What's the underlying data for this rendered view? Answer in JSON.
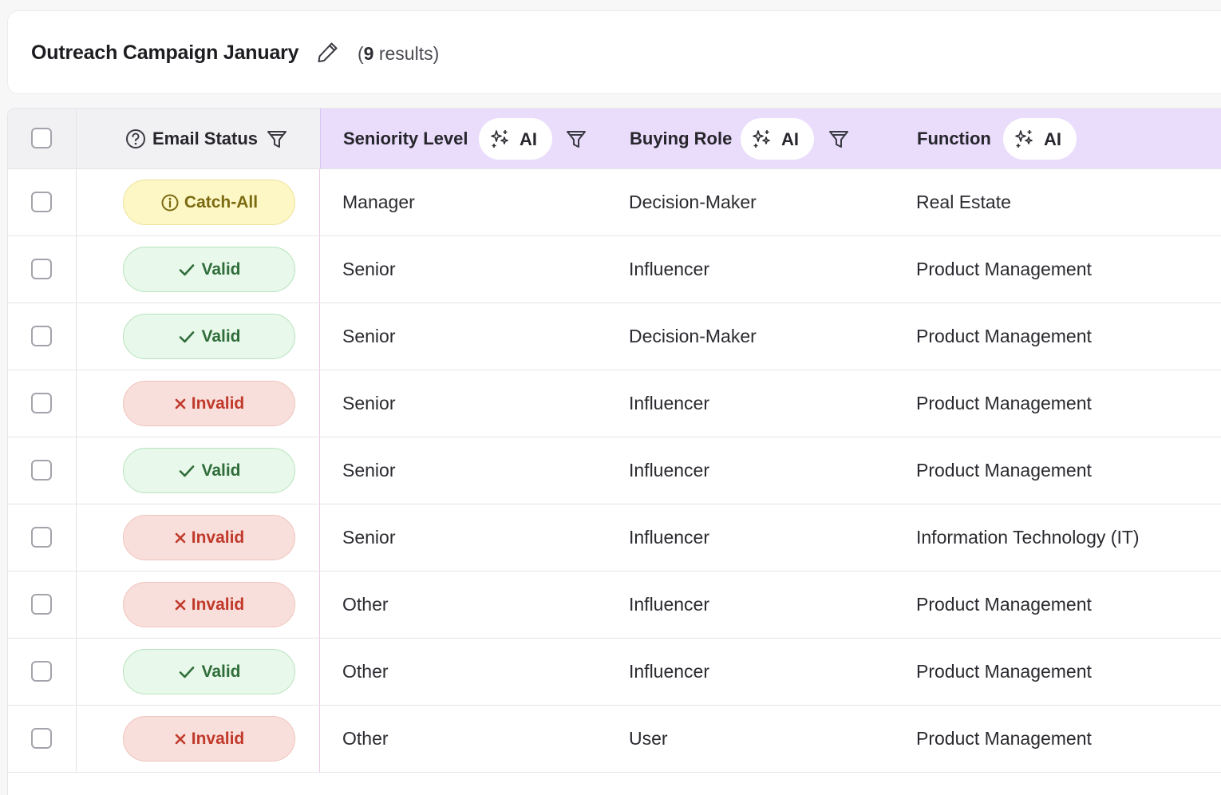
{
  "header": {
    "title": "Outreach Campaign January",
    "results_prefix": "(",
    "results_count": "9",
    "results_suffix": " results)"
  },
  "columns": {
    "email_status": "Email Status",
    "seniority": "Seniority Level",
    "buying_role": "Buying Role",
    "function": "Function",
    "ai_label": "AI"
  },
  "colors": {
    "ai_header_bg": "#eadcfb",
    "valid": "#2f6d3a",
    "invalid": "#c0392b",
    "catch_all": "#7a6a10"
  },
  "rows": [
    {
      "status": "Catch-All",
      "status_kind": "catch",
      "seniority": "Manager",
      "buying_role": "Decision-Maker",
      "function": "Real Estate"
    },
    {
      "status": "Valid",
      "status_kind": "valid",
      "seniority": "Senior",
      "buying_role": "Influencer",
      "function": "Product Management"
    },
    {
      "status": "Valid",
      "status_kind": "valid",
      "seniority": "Senior",
      "buying_role": "Decision-Maker",
      "function": "Product Management"
    },
    {
      "status": "Invalid",
      "status_kind": "invalid",
      "seniority": "Senior",
      "buying_role": "Influencer",
      "function": "Product Management"
    },
    {
      "status": "Valid",
      "status_kind": "valid",
      "seniority": "Senior",
      "buying_role": "Influencer",
      "function": "Product Management"
    },
    {
      "status": "Invalid",
      "status_kind": "invalid",
      "seniority": "Senior",
      "buying_role": "Influencer",
      "function": "Information Technology (IT)"
    },
    {
      "status": "Invalid",
      "status_kind": "invalid",
      "seniority": "Other",
      "buying_role": "Influencer",
      "function": "Product Management"
    },
    {
      "status": "Valid",
      "status_kind": "valid",
      "seniority": "Other",
      "buying_role": "Influencer",
      "function": "Product Management"
    },
    {
      "status": "Invalid",
      "status_kind": "invalid",
      "seniority": "Other",
      "buying_role": "User",
      "function": "Product Management"
    }
  ]
}
